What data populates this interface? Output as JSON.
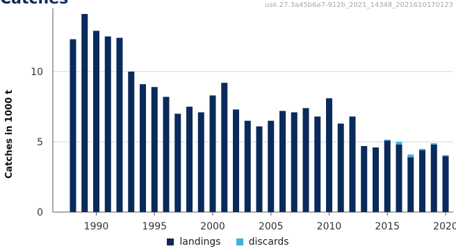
{
  "header": {
    "title": "Catches",
    "code": "usk.27.3a45b6a7-912b_2021_14348_2021610170123"
  },
  "chart_data": {
    "type": "bar",
    "stacked": true,
    "ylabel": "Catches in 1000 t",
    "xlabel": "",
    "ylim": [
      0,
      14.5
    ],
    "yticks": [
      0,
      5,
      10
    ],
    "xticks": [
      1990,
      1995,
      2000,
      2005,
      2010,
      2015,
      2020
    ],
    "grid": "horizontal",
    "legend_position": "bottom",
    "categories": [
      1988,
      1989,
      1990,
      1991,
      1992,
      1993,
      1994,
      1995,
      1996,
      1997,
      1998,
      1999,
      2000,
      2001,
      2002,
      2003,
      2004,
      2005,
      2006,
      2007,
      2008,
      2009,
      2010,
      2011,
      2012,
      2013,
      2014,
      2015,
      2016,
      2017,
      2018,
      2019,
      2020
    ],
    "series": [
      {
        "name": "landings",
        "color": "#0a2a5c",
        "values": [
          12.3,
          14.1,
          12.9,
          12.5,
          12.4,
          10.0,
          9.1,
          8.9,
          8.2,
          7.0,
          7.5,
          7.1,
          8.3,
          9.2,
          7.3,
          6.5,
          6.1,
          6.5,
          7.2,
          7.1,
          7.4,
          6.8,
          8.1,
          6.3,
          6.8,
          4.7,
          4.6,
          5.1,
          4.8,
          3.9,
          4.4,
          4.8,
          4.0
        ]
      },
      {
        "name": "discards",
        "color": "#3eb1e0",
        "values": [
          0,
          0,
          0,
          0,
          0,
          0,
          0,
          0,
          0,
          0,
          0,
          0,
          0,
          0,
          0,
          0,
          0,
          0,
          0,
          0,
          0,
          0,
          0,
          0,
          0,
          0,
          0,
          0.05,
          0.2,
          0.2,
          0.1,
          0.1,
          0.05
        ]
      }
    ]
  }
}
